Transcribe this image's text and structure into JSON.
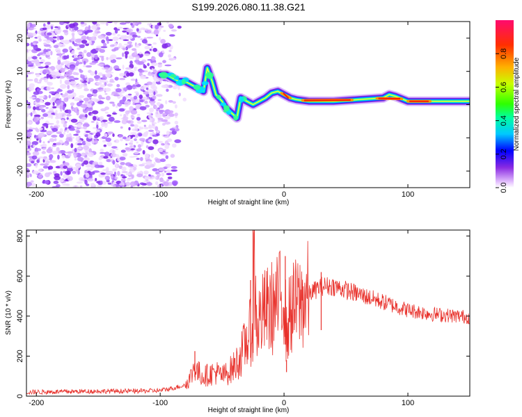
{
  "chart_data": [
    {
      "type": "heatmap",
      "title": "S199.2026.080.11.38.G21",
      "xlabel": "Height of straight line (km)",
      "ylabel": "Frequency (Hz)",
      "xlim": [
        -208,
        150
      ],
      "ylim": [
        -25,
        25
      ],
      "xticks": [
        -200,
        -100,
        0,
        100
      ],
      "yticks": [
        -20,
        -10,
        0,
        10,
        20
      ],
      "ridge": {
        "x": [
          -100,
          -95,
          -90,
          -85,
          -80,
          -75,
          -70,
          -65,
          -62,
          -58,
          -55,
          -50,
          -47,
          -44,
          -41,
          -38,
          -35,
          -30,
          -25,
          -20,
          -15,
          -10,
          -5,
          0,
          5,
          10,
          20,
          40,
          60,
          80,
          85,
          90,
          100,
          120,
          150
        ],
        "y": [
          9,
          9,
          8,
          7,
          7,
          6,
          5,
          4,
          11,
          7,
          3,
          1,
          -1,
          -2,
          -3,
          -4,
          2,
          1,
          0,
          1,
          2,
          3.5,
          4,
          3,
          2,
          1.5,
          1,
          1,
          1.5,
          2,
          3,
          2.5,
          1,
          1,
          1
        ]
      },
      "colorbar": {
        "label": "Normalized spectral amplitude",
        "ticks": [
          "0.0",
          "0.2",
          "0.4",
          "0.6",
          "0.8"
        ],
        "range": [
          0,
          1
        ]
      }
    },
    {
      "type": "line",
      "xlabel": "Height of straight line (km)",
      "ylabel": "SNR (10 * v/v)",
      "xlim": [
        -208,
        150
      ],
      "ylim": [
        0,
        830
      ],
      "xticks": [
        -200,
        -100,
        0,
        100
      ],
      "yticks": [
        0,
        200,
        400,
        600,
        800
      ],
      "series": [
        {
          "name": "SNR",
          "color": "#e8302a",
          "x": [
            -208,
            -180,
            -150,
            -120,
            -100,
            -90,
            -80,
            -75,
            -72,
            -70,
            -65,
            -60,
            -55,
            -50,
            -45,
            -40,
            -35,
            -30,
            -27,
            -25,
            -24,
            -22,
            -20,
            -15,
            -10,
            -5,
            -2,
            0,
            2,
            5,
            10,
            15,
            20,
            25,
            30,
            40,
            50,
            60,
            70,
            80,
            90,
            100,
            110,
            120,
            130,
            140,
            150
          ],
          "y": [
            20,
            22,
            25,
            25,
            28,
            40,
            55,
            100,
            160,
            120,
            100,
            110,
            120,
            100,
            120,
            150,
            200,
            280,
            320,
            360,
            650,
            340,
            380,
            420,
            440,
            460,
            500,
            560,
            300,
            430,
            450,
            480,
            510,
            530,
            550,
            550,
            530,
            510,
            490,
            470,
            450,
            430,
            420,
            410,
            405,
            400,
            395
          ]
        }
      ],
      "spikes": [
        {
          "x": -25,
          "y": 830
        },
        {
          "x": -27,
          "y": 580
        },
        {
          "x": 1,
          "y": 700
        },
        {
          "x": 2,
          "y": 120
        },
        {
          "x": -72,
          "y": 225
        },
        {
          "x": 30,
          "y": 620
        }
      ]
    }
  ],
  "colors": {
    "snr_line": "#e8302a"
  }
}
